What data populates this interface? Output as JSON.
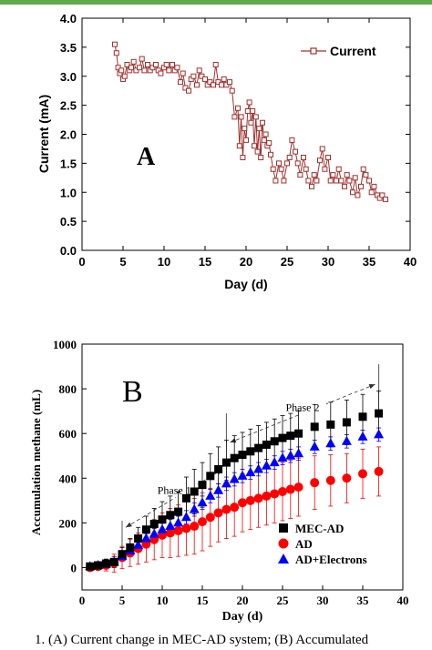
{
  "chart_data": [
    {
      "type": "line",
      "panel_label": "A",
      "xlabel": "Day (d)",
      "ylabel": "Current (mA)",
      "xlim": [
        0,
        40
      ],
      "ylim": [
        0.0,
        4.0
      ],
      "xticks": [
        "0",
        "5",
        "10",
        "15",
        "20",
        "25",
        "30",
        "35",
        "40"
      ],
      "yticks": [
        "0.0",
        "0.5",
        "1.0",
        "1.5",
        "2.0",
        "2.5",
        "3.0",
        "3.5",
        "4.0"
      ],
      "legend_position": "top-right",
      "series": [
        {
          "name": "Current",
          "color": "#a0312d",
          "marker": "open-square",
          "x": [
            4.0,
            4.2,
            4.4,
            4.6,
            4.8,
            5.0,
            5.2,
            5.5,
            5.8,
            6.0,
            6.3,
            6.6,
            7.0,
            7.3,
            7.6,
            8.0,
            8.3,
            8.6,
            9.0,
            9.3,
            9.6,
            10.0,
            10.3,
            10.6,
            11.0,
            11.3,
            11.6,
            12.0,
            12.3,
            12.6,
            13.0,
            13.3,
            13.6,
            14.0,
            14.3,
            14.6,
            15.0,
            15.3,
            15.6,
            16.0,
            16.3,
            16.6,
            17.0,
            17.3,
            17.6,
            18.0,
            18.3,
            18.6,
            19.0,
            19.2,
            19.4,
            19.6,
            19.8,
            20.0,
            20.2,
            20.4,
            20.6,
            20.8,
            21.0,
            21.2,
            21.4,
            21.6,
            21.8,
            22.0,
            22.2,
            22.4,
            22.6,
            22.8,
            23.0,
            23.3,
            23.6,
            24.0,
            24.3,
            24.6,
            25.0,
            25.3,
            25.6,
            26.0,
            26.3,
            26.6,
            27.0,
            27.3,
            27.6,
            28.0,
            28.3,
            28.6,
            29.0,
            29.3,
            29.6,
            30.0,
            30.3,
            30.6,
            31.0,
            31.3,
            31.6,
            32.0,
            32.3,
            32.6,
            33.0,
            33.3,
            33.6,
            34.0,
            34.3,
            34.6,
            35.0,
            35.3,
            35.6,
            36.0,
            36.3,
            36.6,
            37.0
          ],
          "y": [
            3.55,
            3.4,
            3.15,
            3.05,
            3.1,
            2.95,
            3.0,
            3.2,
            3.1,
            3.15,
            3.25,
            3.1,
            3.15,
            3.3,
            3.1,
            3.2,
            3.1,
            3.15,
            3.2,
            3.1,
            3.05,
            3.15,
            3.2,
            3.1,
            3.2,
            3.1,
            3.15,
            2.9,
            3.05,
            2.8,
            2.75,
            2.95,
            3.0,
            2.85,
            3.1,
            3.0,
            2.95,
            2.85,
            2.9,
            2.85,
            3.2,
            2.9,
            2.85,
            2.95,
            2.85,
            2.9,
            2.75,
            2.3,
            2.45,
            1.8,
            2.3,
            1.6,
            2.1,
            1.9,
            2.4,
            2.55,
            2.2,
            2.4,
            1.8,
            2.3,
            1.7,
            2.1,
            1.6,
            2.2,
            1.9,
            2.0,
            1.8,
            1.85,
            1.65,
            1.4,
            1.2,
            1.5,
            1.4,
            1.2,
            1.5,
            1.6,
            1.9,
            1.7,
            1.5,
            1.3,
            1.6,
            1.4,
            1.2,
            1.1,
            1.3,
            1.2,
            1.55,
            1.75,
            1.4,
            1.6,
            1.2,
            1.3,
            1.2,
            1.4,
            1.2,
            1.1,
            1.3,
            1.2,
            1.0,
            1.25,
            0.95,
            1.1,
            1.4,
            1.3,
            1.2,
            1.0,
            1.1,
            0.95,
            0.9,
            0.95,
            0.88
          ]
        }
      ]
    },
    {
      "type": "scatter",
      "panel_label": "B",
      "xlabel": "Day (d)",
      "ylabel": "Accumulation methane (mL)",
      "xlim": [
        0,
        40
      ],
      "ylim": [
        -100,
        1000
      ],
      "xticks": [
        "0",
        "5",
        "10",
        "15",
        "20",
        "25",
        "30",
        "35",
        "40"
      ],
      "yticks": [
        "0",
        "200",
        "400",
        "600",
        "800",
        "1000"
      ],
      "legend_position": "bottom-right",
      "annotations": [
        {
          "text": "Phase 1",
          "x_from": 5,
          "x_to": 18,
          "y_at_text": 330
        },
        {
          "text": "Phase 2",
          "x_from": 18,
          "x_to": 37,
          "y_at_text": 700
        }
      ],
      "phase_markers_x": [
        5,
        18,
        37
      ],
      "series": [
        {
          "name": "MEC-AD",
          "color": "#000000",
          "marker": "square",
          "x": [
            1,
            2,
            3,
            4,
            5,
            6,
            7,
            8,
            9,
            10,
            11,
            12,
            13,
            14,
            15,
            16,
            17,
            18,
            19,
            20,
            21,
            22,
            23,
            24,
            25,
            26,
            27,
            29,
            31,
            33,
            35,
            37
          ],
          "y": [
            5,
            10,
            18,
            25,
            60,
            90,
            130,
            170,
            195,
            215,
            235,
            250,
            310,
            340,
            370,
            410,
            440,
            470,
            490,
            505,
            520,
            535,
            550,
            565,
            580,
            590,
            600,
            630,
            640,
            650,
            675,
            690
          ],
          "err": [
            10,
            15,
            20,
            25,
            30,
            40,
            50,
            60,
            70,
            80,
            85,
            90,
            95,
            100,
            100,
            100,
            100,
            100,
            100,
            100,
            100,
            100,
            100,
            100,
            100,
            100,
            100,
            100,
            100,
            100,
            100,
            100
          ]
        },
        {
          "name": "AD",
          "color": "#ff0000",
          "marker": "circle",
          "x": [
            1,
            2,
            3,
            4,
            5,
            6,
            7,
            8,
            9,
            10,
            11,
            12,
            13,
            14,
            15,
            16,
            17,
            18,
            19,
            20,
            21,
            22,
            23,
            24,
            25,
            26,
            27,
            29,
            31,
            33,
            35,
            37
          ],
          "y": [
            0,
            5,
            10,
            20,
            45,
            65,
            85,
            105,
            125,
            145,
            155,
            165,
            175,
            185,
            205,
            225,
            245,
            260,
            270,
            290,
            300,
            310,
            320,
            330,
            340,
            350,
            360,
            380,
            390,
            400,
            420,
            430
          ],
          "err": [
            10,
            15,
            25,
            40,
            50,
            60,
            70,
            80,
            90,
            100,
            110,
            115,
            120,
            125,
            130,
            130,
            130,
            130,
            130,
            130,
            130,
            130,
            130,
            130,
            130,
            130,
            130,
            120,
            115,
            110,
            110,
            110
          ]
        },
        {
          "name": "AD+Electrons",
          "color": "#0000ff",
          "marker": "triangle",
          "x": [
            1,
            2,
            3,
            4,
            5,
            6,
            7,
            8,
            9,
            10,
            11,
            12,
            13,
            14,
            15,
            16,
            17,
            18,
            19,
            20,
            21,
            22,
            23,
            24,
            25,
            26,
            27,
            29,
            31,
            33,
            35,
            37
          ],
          "y": [
            5,
            10,
            15,
            25,
            50,
            75,
            100,
            130,
            150,
            170,
            185,
            200,
            225,
            260,
            290,
            320,
            345,
            375,
            395,
            410,
            425,
            440,
            455,
            470,
            490,
            500,
            510,
            540,
            555,
            565,
            585,
            595
          ],
          "err": [
            5,
            8,
            10,
            12,
            15,
            18,
            20,
            22,
            25,
            28,
            30,
            30,
            30,
            30,
            30,
            30,
            30,
            30,
            30,
            30,
            30,
            30,
            30,
            30,
            30,
            30,
            30,
            30,
            30,
            30,
            30,
            30
          ]
        }
      ]
    }
  ],
  "caption": {
    "text": "1. (A) Current change in MEC-AD system; (B) Accumulated"
  }
}
